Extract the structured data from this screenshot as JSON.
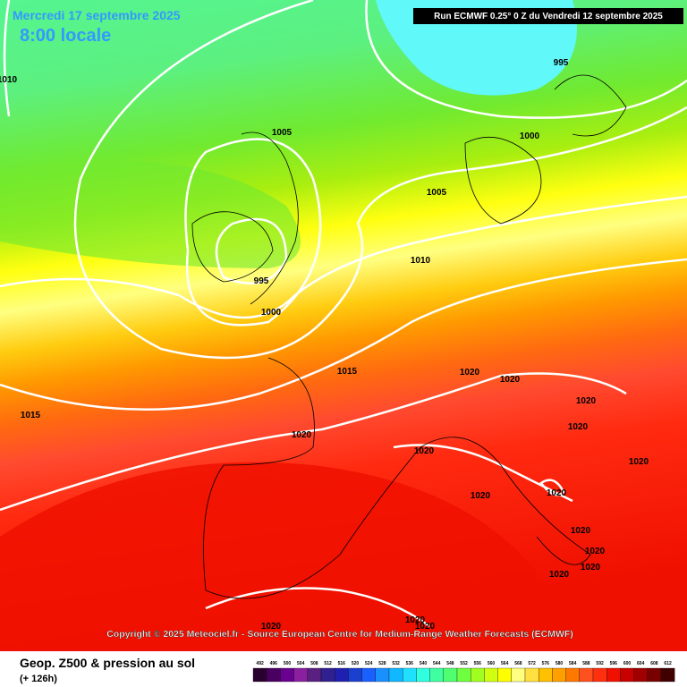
{
  "header": {
    "date": "Mercredi 17 septembre 2025",
    "time": "8:00 locale",
    "run": "Run ECMWF 0.25° 0 Z du Vendredi 12 septembre 2025"
  },
  "isobar_labels": [
    "1010",
    "995",
    "1005",
    "1000",
    "1005",
    "1010",
    "995",
    "1000",
    "1015",
    "1020",
    "1020",
    "1015",
    "1020",
    "1020",
    "1020",
    "1020",
    "1020",
    "1020",
    "1020",
    "1020",
    "1020",
    "1020",
    "1020",
    "1020",
    "1020",
    "1020"
  ],
  "copyright": "Copyright © 2025 Meteociel.fr - Source European Centre for Medium-Range Weather Forecasts (ECMWF)",
  "legend": {
    "title": "Geop. Z500 & pression au sol",
    "subtitle": "(+ 126h)",
    "scale": [
      492,
      496,
      500,
      504,
      508,
      512,
      516,
      520,
      524,
      528,
      532,
      536,
      540,
      544,
      548,
      552,
      556,
      560,
      564,
      568,
      572,
      576,
      580,
      584,
      588,
      592,
      596,
      600,
      604,
      608,
      612
    ],
    "colors": [
      "#2a0030",
      "#4a0060",
      "#6a0090",
      "#8a20a0",
      "#5a2080",
      "#302090",
      "#2020b0",
      "#1a40d0",
      "#1a60ff",
      "#1a90ff",
      "#10b8ff",
      "#20e0ff",
      "#30ffe0",
      "#40ffa0",
      "#50ff70",
      "#70ff40",
      "#a0ff20",
      "#d0ff10",
      "#ffff00",
      "#ffff80",
      "#ffe040",
      "#ffc000",
      "#ffa000",
      "#ff7800",
      "#ff5020",
      "#ff3010",
      "#f01000",
      "#c80000",
      "#a00000",
      "#780000",
      "#400000"
    ]
  }
}
